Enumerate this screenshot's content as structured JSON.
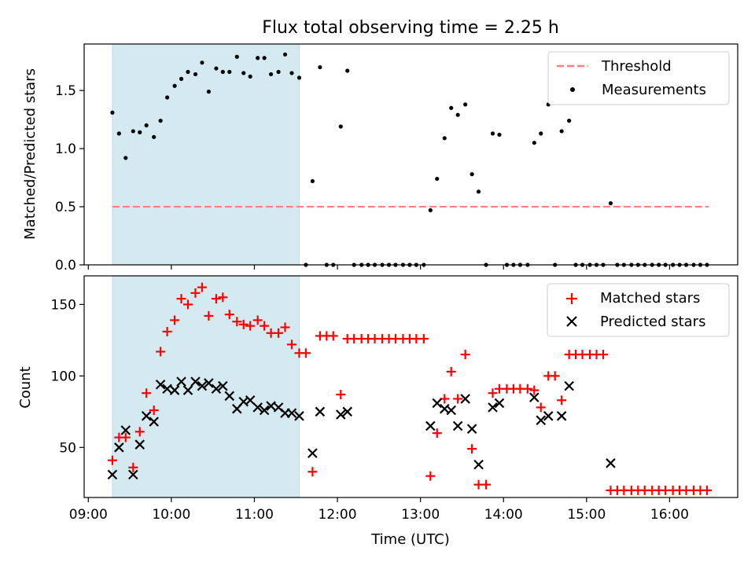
{
  "title": "Flux total observing time = 2.25 h",
  "xlabel": "Time (UTC)",
  "xticks": [
    {
      "h": 9,
      "label": "09:00"
    },
    {
      "h": 10,
      "label": "10:00"
    },
    {
      "h": 11,
      "label": "11:00"
    },
    {
      "h": 12,
      "label": "12:00"
    },
    {
      "h": 13,
      "label": "13:00"
    },
    {
      "h": 14,
      "label": "14:00"
    },
    {
      "h": 15,
      "label": "15:00"
    },
    {
      "h": 16,
      "label": "16:00"
    }
  ],
  "colors": {
    "threshold": "#ff7f7f",
    "measurement": "#000000",
    "matched": "#ff0000",
    "predicted": "#000000",
    "span": "#d4eaf0"
  },
  "chart_data": [
    {
      "type": "scatter",
      "title": "Flux total observing time = 2.25 h",
      "xlabel": "Time (UTC)",
      "ylabel": "Matched/Predicted stars",
      "xlim_hours": [
        8.95,
        16.82
      ],
      "ylim": [
        0,
        1.9
      ],
      "yticks": [
        {
          "v": 0,
          "label": "0.0"
        },
        {
          "v": 0.5,
          "label": "0.5"
        },
        {
          "v": 1.0,
          "label": "1.0"
        },
        {
          "v": 1.5,
          "label": "1.5"
        }
      ],
      "highlight_span_hours": [
        9.29,
        11.54
      ],
      "threshold": {
        "name": "Threshold",
        "value": 0.5,
        "x_range_hours": [
          9.29,
          16.47
        ]
      },
      "legend": {
        "position": "top-right",
        "entries": [
          "Threshold",
          "Measurements"
        ]
      },
      "series": [
        {
          "name": "Measurements",
          "x_hours": [
            9.29,
            9.37,
            9.45,
            9.54,
            9.62,
            9.7,
            9.79,
            9.87,
            9.95,
            10.04,
            10.12,
            10.2,
            10.29,
            10.37,
            10.45,
            10.54,
            10.62,
            10.7,
            10.79,
            10.87,
            10.95,
            11.04,
            11.12,
            11.2,
            11.29,
            11.37,
            11.45,
            11.54,
            11.62,
            11.7,
            11.79,
            11.87,
            11.95,
            12.04,
            12.12,
            12.2,
            12.29,
            12.37,
            12.45,
            12.54,
            12.62,
            12.7,
            12.79,
            12.87,
            12.95,
            13.04,
            13.12,
            13.2,
            13.29,
            13.37,
            13.45,
            13.54,
            13.62,
            13.7,
            13.79,
            13.87,
            13.95,
            14.04,
            14.12,
            14.2,
            14.29,
            14.37,
            14.45,
            14.54,
            14.62,
            14.7,
            14.79,
            14.87,
            14.95,
            15.04,
            15.12,
            15.2,
            15.29,
            15.37,
            15.45,
            15.54,
            15.62,
            15.7,
            15.79,
            15.87,
            15.95,
            16.04,
            16.12,
            16.2,
            16.29,
            16.37,
            16.45
          ],
          "y": [
            1.31,
            1.13,
            0.92,
            1.15,
            1.14,
            1.2,
            1.1,
            1.24,
            1.44,
            1.54,
            1.6,
            1.66,
            1.64,
            1.74,
            1.49,
            1.69,
            1.66,
            1.66,
            1.79,
            1.65,
            1.62,
            1.78,
            1.78,
            1.64,
            1.66,
            1.81,
            1.65,
            1.61,
            0,
            0.72,
            1.7,
            0,
            0,
            1.19,
            1.67,
            0,
            0,
            0,
            0,
            0,
            0,
            0,
            0,
            0,
            0,
            0,
            0.47,
            0.74,
            1.09,
            1.35,
            1.29,
            1.38,
            0.78,
            0.63,
            0,
            1.13,
            1.12,
            0,
            0,
            0,
            0,
            1.05,
            1.13,
            1.38,
            0,
            1.15,
            1.24,
            0,
            0,
            0,
            0,
            0,
            0.53,
            0,
            0,
            0,
            0,
            0,
            0,
            0,
            0,
            0,
            0,
            0,
            0,
            0,
            0
          ]
        }
      ]
    },
    {
      "type": "scatter",
      "xlabel": "Time (UTC)",
      "ylabel": "Count",
      "xlim_hours": [
        8.95,
        16.82
      ],
      "ylim": [
        15,
        170
      ],
      "yticks": [
        {
          "v": 50,
          "label": "50"
        },
        {
          "v": 100,
          "label": "100"
        },
        {
          "v": 150,
          "label": "150"
        }
      ],
      "highlight_span_hours": [
        9.29,
        11.54
      ],
      "legend": {
        "position": "top-right",
        "entries": [
          "Matched stars",
          "Predicted stars"
        ]
      },
      "series": [
        {
          "name": "Matched stars",
          "marker": "+",
          "points": [
            [
              9.29,
              41
            ],
            [
              9.37,
              57
            ],
            [
              9.45,
              57
            ],
            [
              9.54,
              36
            ],
            [
              9.62,
              61
            ],
            [
              9.7,
              88
            ],
            [
              9.79,
              76
            ],
            [
              9.87,
              117
            ],
            [
              9.95,
              131
            ],
            [
              10.04,
              139
            ],
            [
              10.12,
              154
            ],
            [
              10.2,
              150
            ],
            [
              10.29,
              158
            ],
            [
              10.37,
              162
            ],
            [
              10.45,
              142
            ],
            [
              10.54,
              154
            ],
            [
              10.62,
              155
            ],
            [
              10.7,
              143
            ],
            [
              10.79,
              138
            ],
            [
              10.87,
              136
            ],
            [
              10.95,
              135
            ],
            [
              11.04,
              139
            ],
            [
              11.12,
              135
            ],
            [
              11.2,
              130
            ],
            [
              11.29,
              130
            ],
            [
              11.37,
              134
            ],
            [
              11.45,
              122
            ],
            [
              11.54,
              116
            ],
            [
              11.62,
              116
            ],
            [
              11.7,
              33
            ],
            [
              11.79,
              128
            ],
            [
              11.87,
              128
            ],
            [
              11.95,
              128
            ],
            [
              12.04,
              87
            ],
            [
              12.12,
              126
            ],
            [
              12.2,
              126
            ],
            [
              12.29,
              126
            ],
            [
              12.37,
              126
            ],
            [
              12.45,
              126
            ],
            [
              12.54,
              126
            ],
            [
              12.62,
              126
            ],
            [
              12.7,
              126
            ],
            [
              12.79,
              126
            ],
            [
              12.87,
              126
            ],
            [
              12.95,
              126
            ],
            [
              13.04,
              126
            ],
            [
              13.12,
              30
            ],
            [
              13.2,
              60
            ],
            [
              13.29,
              84
            ],
            [
              13.37,
              103
            ],
            [
              13.45,
              84
            ],
            [
              13.54,
              115
            ],
            [
              13.62,
              49
            ],
            [
              13.7,
              24
            ],
            [
              13.79,
              24
            ],
            [
              13.87,
              88
            ],
            [
              13.95,
              91
            ],
            [
              14.04,
              91
            ],
            [
              14.12,
              91
            ],
            [
              14.2,
              91
            ],
            [
              14.29,
              91
            ],
            [
              14.37,
              90
            ],
            [
              14.45,
              78
            ],
            [
              14.54,
              100
            ],
            [
              14.62,
              100
            ],
            [
              14.7,
              83
            ],
            [
              14.79,
              115
            ],
            [
              14.87,
              115
            ],
            [
              14.95,
              115
            ],
            [
              15.04,
              115
            ],
            [
              15.12,
              115
            ],
            [
              15.2,
              115
            ],
            [
              15.29,
              20
            ],
            [
              15.37,
              20
            ],
            [
              15.45,
              20
            ],
            [
              15.54,
              20
            ],
            [
              15.62,
              20
            ],
            [
              15.7,
              20
            ],
            [
              15.79,
              20
            ],
            [
              15.87,
              20
            ],
            [
              15.95,
              20
            ],
            [
              16.04,
              20
            ],
            [
              16.12,
              20
            ],
            [
              16.2,
              20
            ],
            [
              16.29,
              20
            ],
            [
              16.37,
              20
            ],
            [
              16.45,
              20
            ]
          ]
        },
        {
          "name": "Predicted stars",
          "marker": "x",
          "points": [
            [
              9.29,
              31
            ],
            [
              9.37,
              50
            ],
            [
              9.45,
              62
            ],
            [
              9.54,
              31
            ],
            [
              9.62,
              52
            ],
            [
              9.7,
              72
            ],
            [
              9.79,
              68
            ],
            [
              9.87,
              94
            ],
            [
              9.95,
              91
            ],
            [
              10.04,
              90
            ],
            [
              10.12,
              96
            ],
            [
              10.2,
              90
            ],
            [
              10.29,
              96
            ],
            [
              10.37,
              93
            ],
            [
              10.45,
              95
            ],
            [
              10.54,
              91
            ],
            [
              10.62,
              93
            ],
            [
              10.7,
              86
            ],
            [
              10.79,
              77
            ],
            [
              10.87,
              82
            ],
            [
              10.95,
              83
            ],
            [
              11.04,
              78
            ],
            [
              11.12,
              76
            ],
            [
              11.2,
              79
            ],
            [
              11.29,
              78
            ],
            [
              11.37,
              74
            ],
            [
              11.45,
              74
            ],
            [
              11.54,
              72
            ],
            [
              11.7,
              46
            ],
            [
              11.79,
              75
            ],
            [
              12.04,
              73
            ],
            [
              12.12,
              75
            ],
            [
              13.12,
              65
            ],
            [
              13.2,
              81
            ],
            [
              13.29,
              77
            ],
            [
              13.37,
              76
            ],
            [
              13.45,
              65
            ],
            [
              13.54,
              84
            ],
            [
              13.62,
              63
            ],
            [
              13.7,
              38
            ],
            [
              13.87,
              78
            ],
            [
              13.95,
              81
            ],
            [
              14.37,
              85
            ],
            [
              14.45,
              69
            ],
            [
              14.54,
              72
            ],
            [
              14.7,
              72
            ],
            [
              14.79,
              93
            ],
            [
              15.29,
              39
            ]
          ]
        }
      ]
    }
  ]
}
